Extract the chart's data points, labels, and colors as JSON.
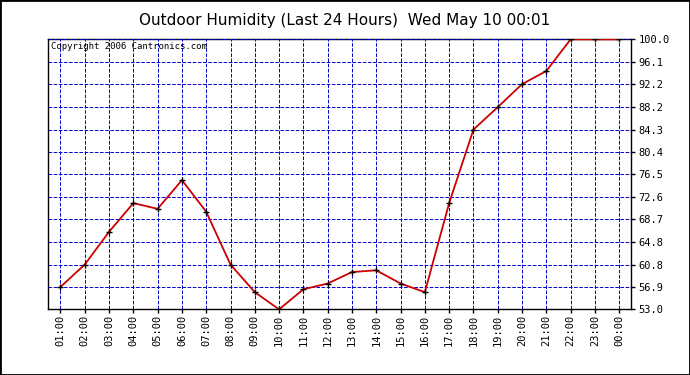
{
  "title": "Outdoor Humidity (Last 24 Hours)  Wed May 10 00:01",
  "copyright": "Copyright 2006 Cantronics.com",
  "x_labels": [
    "01:00",
    "02:00",
    "03:00",
    "04:00",
    "05:00",
    "06:00",
    "07:00",
    "08:00",
    "09:00",
    "10:00",
    "11:00",
    "12:00",
    "13:00",
    "14:00",
    "15:00",
    "16:00",
    "17:00",
    "18:00",
    "19:00",
    "20:00",
    "21:00",
    "22:00",
    "23:00",
    "00:00"
  ],
  "y_values": [
    56.9,
    60.8,
    66.5,
    71.5,
    70.5,
    75.5,
    70.0,
    60.8,
    56.0,
    53.0,
    56.5,
    57.5,
    59.5,
    59.8,
    57.5,
    56.0,
    71.5,
    84.3,
    88.2,
    92.2,
    94.5,
    100.0,
    100.0,
    100.0
  ],
  "line_color": "#cc0000",
  "bg_color": "#ffffff",
  "grid_color": "#0000cc",
  "yticks": [
    53.0,
    56.9,
    60.8,
    64.8,
    68.7,
    72.6,
    76.5,
    80.4,
    84.3,
    88.2,
    92.2,
    96.1,
    100.0
  ],
  "ylim": [
    53.0,
    100.0
  ],
  "title_fontsize": 11,
  "tick_fontsize": 7.5,
  "copyright_fontsize": 6.5
}
